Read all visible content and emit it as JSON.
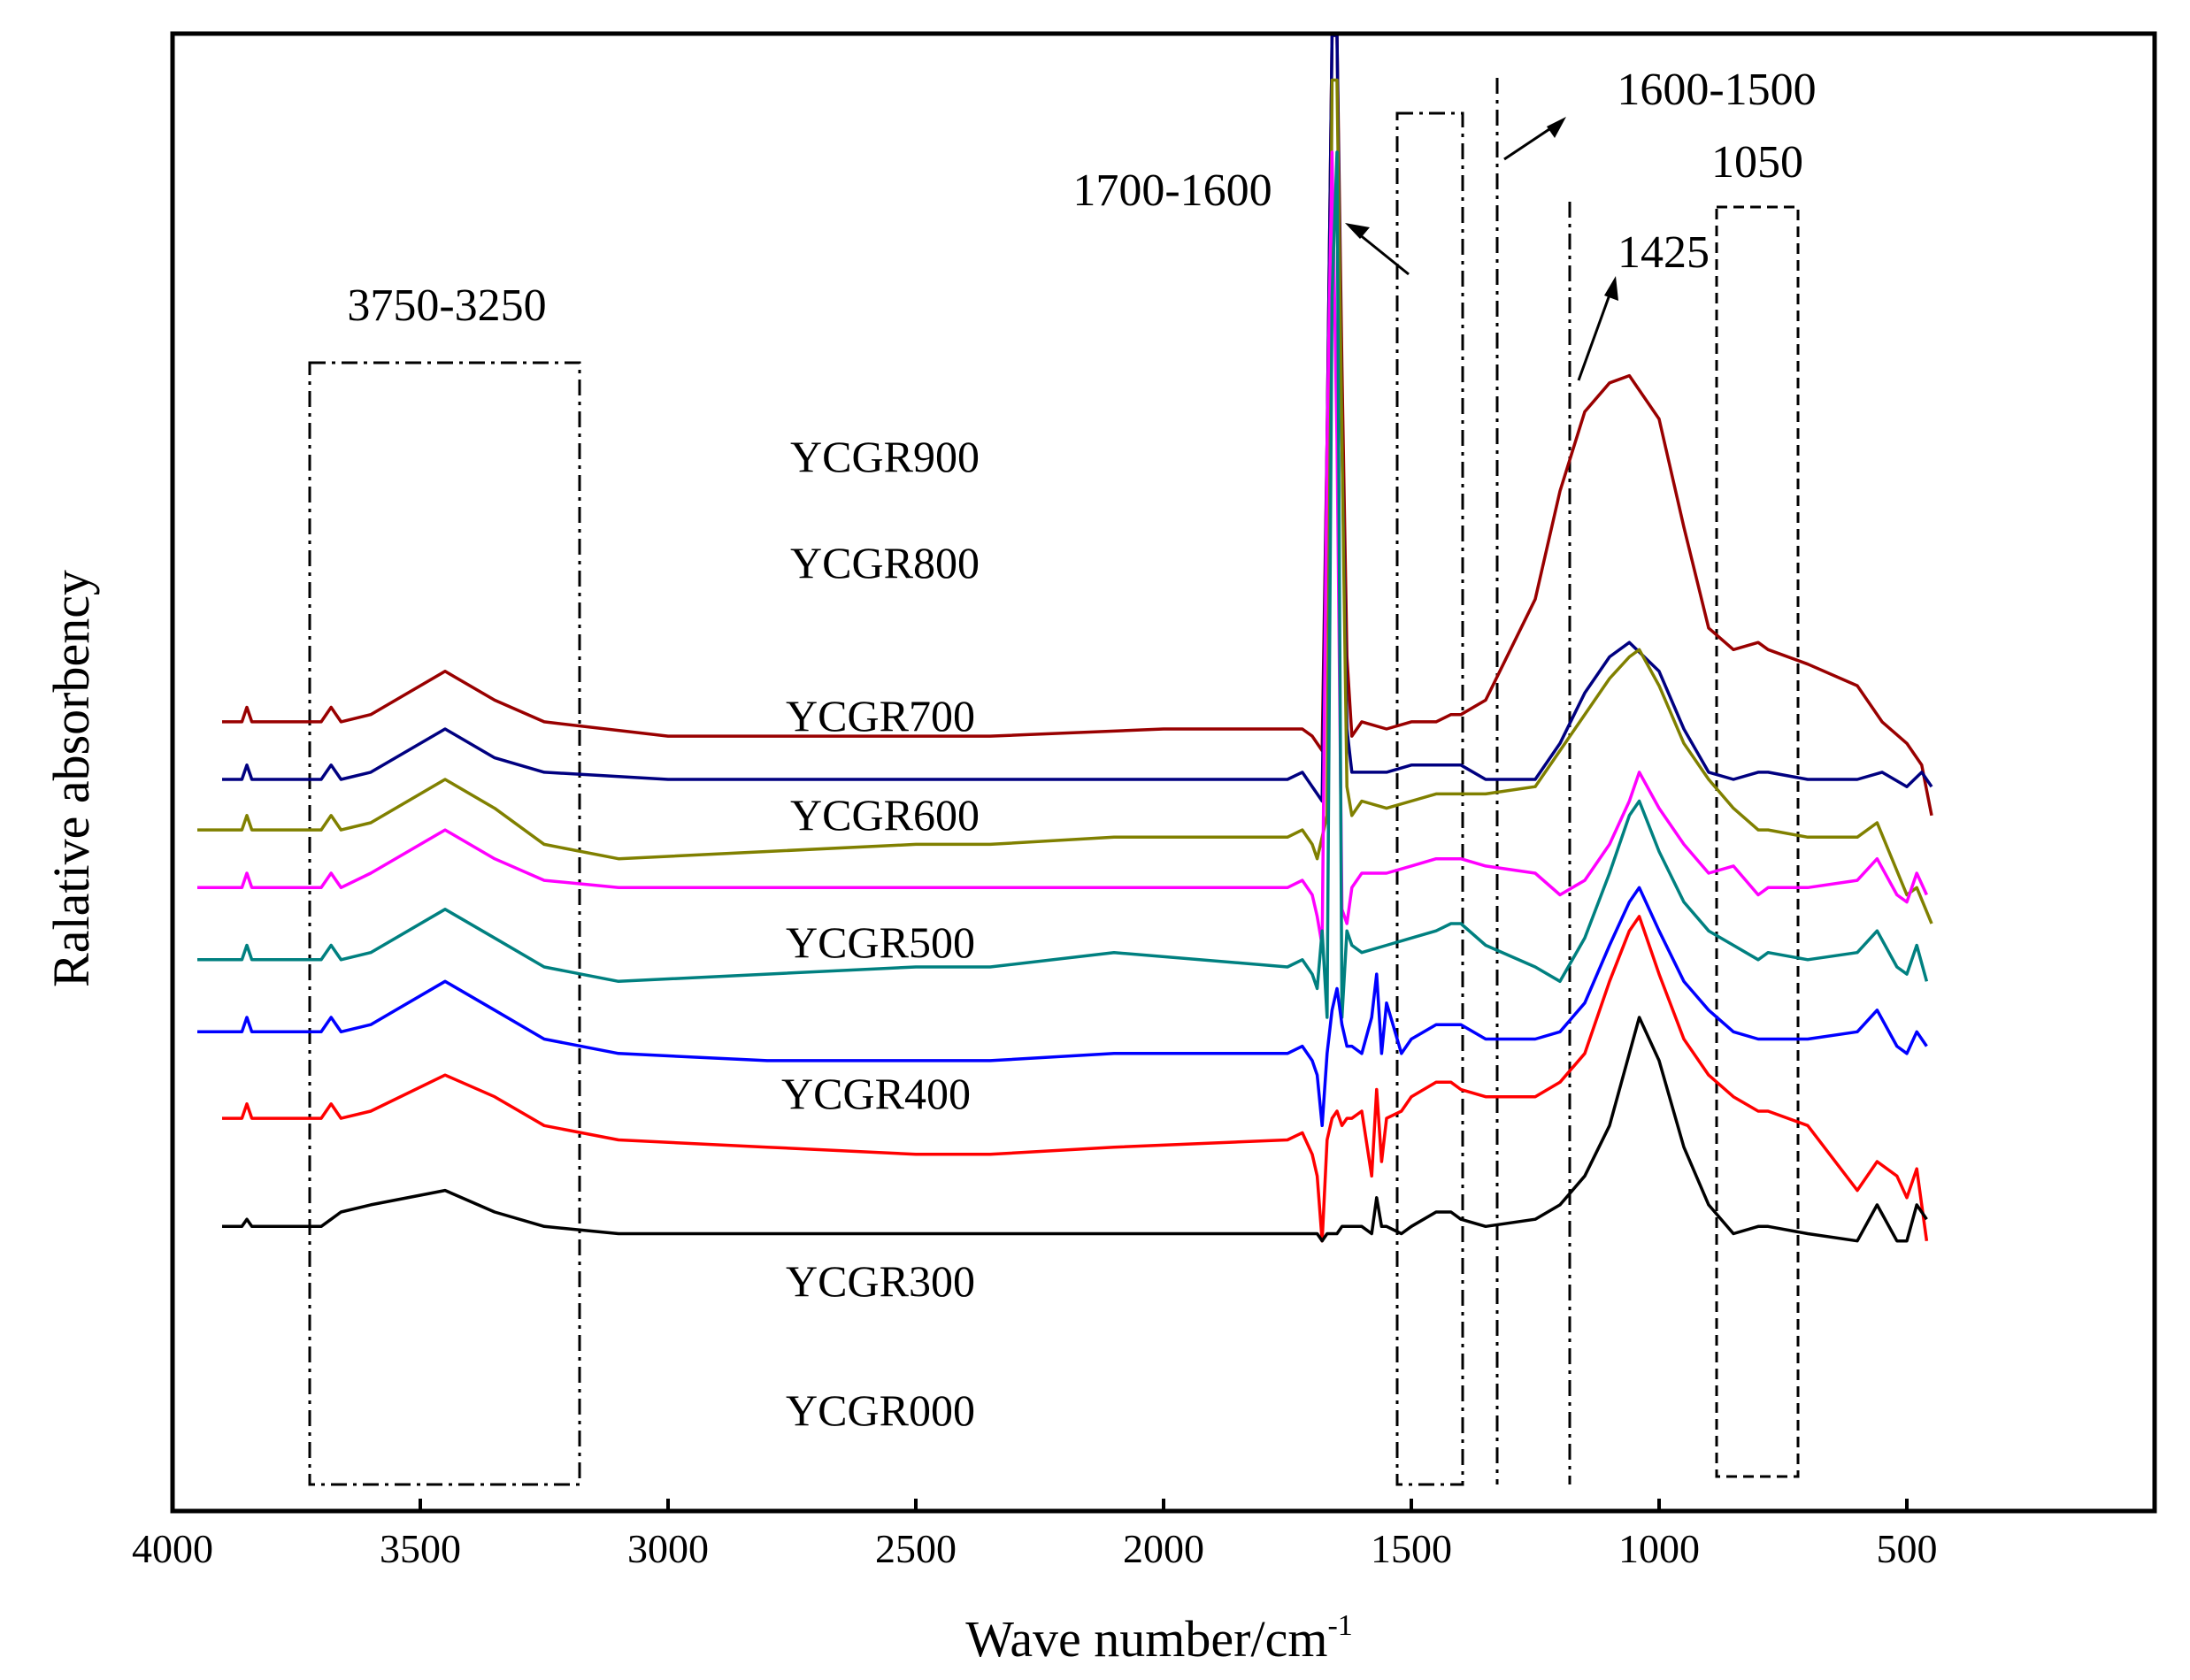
{
  "chart_data": {
    "type": "line",
    "xlabel": "Wave number/cm",
    "xlabel_sup": "-1",
    "ylabel": "Ralative absorbency",
    "xlim": [
      4000,
      300
    ],
    "x_reversed": true,
    "x_ticks": [
      4000,
      3500,
      3000,
      2500,
      2000,
      1500,
      1000,
      500
    ],
    "y_ticks_shown": false,
    "grid": false,
    "legend": "none (series names labelled inline)",
    "colors": {
      "YCGR900": "#990000",
      "YCGR800": "#000080",
      "YCGR700": "#808000",
      "YCGR600": "#ff00ff",
      "YCGR500": "#008080",
      "YCGR400": "#0000ff",
      "YCGR300": "#ff0000",
      "YCGR000": "#000000"
    },
    "series": [
      {
        "name": "YCGR900",
        "x": [
          3900,
          3860,
          3850,
          3840,
          3750,
          3700,
          3680,
          3660,
          3600,
          3450,
          3350,
          3250,
          3000,
          2800,
          2500,
          2350,
          2000,
          1750,
          1720,
          1700,
          1680,
          1670,
          1660,
          1650,
          1640,
          1630,
          1620,
          1600,
          1550,
          1500,
          1450,
          1420,
          1400,
          1350,
          1250,
          1200,
          1150,
          1100,
          1060,
          1000,
          950,
          900,
          850,
          800,
          780,
          700,
          600,
          550,
          500,
          470,
          450
        ],
        "y": [
          0.41,
          0.41,
          0.43,
          0.41,
          0.41,
          0.41,
          0.43,
          0.41,
          0.42,
          0.48,
          0.44,
          0.41,
          0.39,
          0.39,
          0.39,
          0.39,
          0.4,
          0.4,
          0.4,
          0.39,
          0.37,
          0.8,
          1.6,
          1.6,
          0.9,
          0.5,
          0.39,
          0.41,
          0.4,
          0.41,
          0.41,
          0.42,
          0.42,
          0.44,
          0.58,
          0.73,
          0.84,
          0.88,
          0.89,
          0.83,
          0.68,
          0.54,
          0.51,
          0.52,
          0.51,
          0.49,
          0.46,
          0.41,
          0.38,
          0.35,
          0.28
        ]
      },
      {
        "name": "YCGR800",
        "x": [
          3900,
          3860,
          3850,
          3840,
          3750,
          3700,
          3680,
          3660,
          3600,
          3450,
          3350,
          3250,
          3000,
          2800,
          2500,
          2350,
          2000,
          1750,
          1720,
          1700,
          1680,
          1670,
          1660,
          1650,
          1640,
          1630,
          1620,
          1600,
          1550,
          1500,
          1450,
          1420,
          1400,
          1350,
          1250,
          1200,
          1150,
          1100,
          1060,
          1000,
          950,
          900,
          850,
          800,
          780,
          700,
          600,
          550,
          500,
          470,
          450
        ],
        "y": [
          0.33,
          0.33,
          0.35,
          0.33,
          0.33,
          0.33,
          0.35,
          0.33,
          0.34,
          0.4,
          0.36,
          0.34,
          0.33,
          0.33,
          0.33,
          0.33,
          0.33,
          0.33,
          0.34,
          0.32,
          0.3,
          0.8,
          1.4,
          1.45,
          0.8,
          0.4,
          0.34,
          0.34,
          0.34,
          0.35,
          0.35,
          0.35,
          0.35,
          0.33,
          0.33,
          0.38,
          0.45,
          0.5,
          0.52,
          0.48,
          0.4,
          0.34,
          0.33,
          0.34,
          0.34,
          0.33,
          0.33,
          0.34,
          0.32,
          0.34,
          0.32
        ]
      },
      {
        "name": "YCGR700",
        "x": [
          3950,
          3860,
          3850,
          3840,
          3750,
          3700,
          3680,
          3660,
          3600,
          3450,
          3350,
          3250,
          3100,
          2800,
          2500,
          2350,
          2100,
          1750,
          1720,
          1700,
          1690,
          1680,
          1670,
          1660,
          1650,
          1640,
          1630,
          1620,
          1600,
          1550,
          1500,
          1450,
          1420,
          1400,
          1350,
          1250,
          1200,
          1150,
          1100,
          1060,
          1040,
          1000,
          950,
          900,
          850,
          800,
          780,
          700,
          600,
          560,
          500,
          480,
          450
        ],
        "y": [
          0.26,
          0.26,
          0.28,
          0.26,
          0.26,
          0.26,
          0.28,
          0.26,
          0.27,
          0.33,
          0.29,
          0.24,
          0.22,
          0.23,
          0.24,
          0.24,
          0.25,
          0.25,
          0.26,
          0.24,
          0.22,
          0.25,
          0.28,
          1.3,
          1.3,
          0.8,
          0.32,
          0.28,
          0.3,
          0.29,
          0.3,
          0.31,
          0.31,
          0.31,
          0.31,
          0.32,
          0.37,
          0.42,
          0.47,
          0.5,
          0.51,
          0.46,
          0.38,
          0.33,
          0.29,
          0.26,
          0.26,
          0.25,
          0.25,
          0.27,
          0.17,
          0.18,
          0.13
        ]
      },
      {
        "name": "YCGR600",
        "x": [
          3950,
          3860,
          3850,
          3840,
          3750,
          3700,
          3680,
          3660,
          3600,
          3450,
          3350,
          3250,
          3100,
          2800,
          2500,
          2350,
          2100,
          1750,
          1720,
          1700,
          1690,
          1680,
          1670,
          1660,
          1650,
          1640,
          1630,
          1620,
          1600,
          1550,
          1500,
          1450,
          1420,
          1400,
          1350,
          1250,
          1200,
          1150,
          1100,
          1060,
          1040,
          1000,
          950,
          900,
          850,
          800,
          780,
          700,
          600,
          560,
          520,
          500,
          480,
          460
        ],
        "y": [
          0.18,
          0.18,
          0.2,
          0.18,
          0.18,
          0.18,
          0.2,
          0.18,
          0.2,
          0.26,
          0.22,
          0.19,
          0.18,
          0.18,
          0.18,
          0.18,
          0.18,
          0.18,
          0.19,
          0.17,
          0.14,
          0.1,
          0.8,
          1.2,
          0.8,
          0.15,
          0.13,
          0.18,
          0.2,
          0.2,
          0.21,
          0.22,
          0.22,
          0.22,
          0.21,
          0.2,
          0.17,
          0.19,
          0.24,
          0.3,
          0.34,
          0.29,
          0.24,
          0.2,
          0.21,
          0.17,
          0.18,
          0.18,
          0.19,
          0.22,
          0.17,
          0.16,
          0.2,
          0.17
        ]
      },
      {
        "name": "YCGR500",
        "x": [
          3950,
          3860,
          3850,
          3840,
          3750,
          3700,
          3680,
          3660,
          3600,
          3450,
          3350,
          3250,
          3100,
          2800,
          2500,
          2350,
          2100,
          1750,
          1720,
          1700,
          1690,
          1680,
          1670,
          1660,
          1650,
          1640,
          1630,
          1620,
          1600,
          1550,
          1500,
          1450,
          1420,
          1400,
          1350,
          1250,
          1200,
          1150,
          1100,
          1060,
          1040,
          1000,
          950,
          900,
          850,
          800,
          780,
          700,
          600,
          560,
          520,
          500,
          480,
          460
        ],
        "y": [
          0.08,
          0.08,
          0.1,
          0.08,
          0.08,
          0.08,
          0.1,
          0.08,
          0.09,
          0.15,
          0.11,
          0.07,
          0.05,
          0.06,
          0.07,
          0.07,
          0.09,
          0.07,
          0.08,
          0.06,
          0.04,
          0.12,
          0.0,
          1.0,
          1.2,
          0.0,
          0.12,
          0.1,
          0.09,
          0.1,
          0.11,
          0.12,
          0.13,
          0.13,
          0.1,
          0.07,
          0.05,
          0.11,
          0.2,
          0.28,
          0.3,
          0.23,
          0.16,
          0.12,
          0.1,
          0.08,
          0.09,
          0.08,
          0.09,
          0.12,
          0.07,
          0.06,
          0.1,
          0.05
        ]
      },
      {
        "name": "YCGR400",
        "x": [
          3950,
          3860,
          3850,
          3840,
          3750,
          3700,
          3680,
          3660,
          3600,
          3450,
          3350,
          3250,
          3100,
          2800,
          2500,
          2350,
          2100,
          1750,
          1720,
          1700,
          1690,
          1680,
          1670,
          1660,
          1650,
          1640,
          1630,
          1620,
          1600,
          1580,
          1570,
          1560,
          1550,
          1520,
          1500,
          1450,
          1420,
          1400,
          1350,
          1250,
          1200,
          1150,
          1100,
          1060,
          1040,
          1000,
          950,
          900,
          850,
          800,
          780,
          700,
          600,
          560,
          520,
          500,
          480,
          460
        ],
        "y": [
          -0.02,
          -0.02,
          0.0,
          -0.02,
          -0.02,
          -0.02,
          0.0,
          -0.02,
          -0.01,
          0.05,
          0.01,
          -0.03,
          -0.05,
          -0.06,
          -0.06,
          -0.06,
          -0.05,
          -0.05,
          -0.04,
          -0.06,
          -0.08,
          -0.15,
          -0.05,
          0.01,
          0.04,
          -0.01,
          -0.04,
          -0.04,
          -0.05,
          0.0,
          0.06,
          -0.05,
          0.02,
          -0.05,
          -0.03,
          -0.01,
          -0.01,
          -0.01,
          -0.03,
          -0.03,
          -0.02,
          0.02,
          0.1,
          0.16,
          0.18,
          0.12,
          0.05,
          0.01,
          -0.02,
          -0.03,
          -0.03,
          -0.03,
          -0.02,
          0.01,
          -0.04,
          -0.05,
          -0.02,
          -0.04
        ]
      },
      {
        "name": "YCGR300",
        "x": [
          3900,
          3860,
          3850,
          3840,
          3750,
          3700,
          3680,
          3660,
          3600,
          3450,
          3350,
          3250,
          3100,
          2800,
          2500,
          2350,
          2100,
          1750,
          1720,
          1700,
          1690,
          1680,
          1670,
          1660,
          1650,
          1640,
          1630,
          1620,
          1600,
          1580,
          1570,
          1560,
          1550,
          1520,
          1500,
          1450,
          1420,
          1400,
          1350,
          1250,
          1200,
          1150,
          1100,
          1060,
          1040,
          1000,
          950,
          900,
          850,
          800,
          780,
          700,
          600,
          560,
          520,
          500,
          480,
          460
        ],
        "y": [
          -0.14,
          -0.14,
          -0.12,
          -0.14,
          -0.14,
          -0.14,
          -0.12,
          -0.14,
          -0.13,
          -0.08,
          -0.11,
          -0.15,
          -0.17,
          -0.18,
          -0.19,
          -0.19,
          -0.18,
          -0.17,
          -0.16,
          -0.19,
          -0.22,
          -0.31,
          -0.17,
          -0.14,
          -0.13,
          -0.15,
          -0.14,
          -0.14,
          -0.13,
          -0.22,
          -0.1,
          -0.2,
          -0.14,
          -0.13,
          -0.11,
          -0.09,
          -0.09,
          -0.1,
          -0.11,
          -0.11,
          -0.09,
          -0.05,
          0.05,
          0.12,
          0.14,
          0.06,
          -0.03,
          -0.08,
          -0.11,
          -0.13,
          -0.13,
          -0.15,
          -0.24,
          -0.2,
          -0.22,
          -0.25,
          -0.21,
          -0.31
        ]
      },
      {
        "name": "YCGR000",
        "x": [
          3900,
          3860,
          3850,
          3840,
          3750,
          3700,
          3680,
          3660,
          3600,
          3450,
          3350,
          3250,
          3100,
          2800,
          2500,
          2350,
          2100,
          1750,
          1720,
          1700,
          1690,
          1680,
          1670,
          1660,
          1650,
          1640,
          1630,
          1620,
          1600,
          1580,
          1570,
          1560,
          1550,
          1520,
          1500,
          1450,
          1420,
          1400,
          1350,
          1250,
          1200,
          1150,
          1100,
          1060,
          1040,
          1000,
          950,
          900,
          850,
          800,
          780,
          700,
          600,
          560,
          520,
          500,
          480,
          460
        ],
        "y": [
          -0.29,
          -0.29,
          -0.28,
          -0.29,
          -0.29,
          -0.29,
          -0.28,
          -0.27,
          -0.26,
          -0.24,
          -0.27,
          -0.29,
          -0.3,
          -0.3,
          -0.3,
          -0.3,
          -0.3,
          -0.3,
          -0.3,
          -0.3,
          -0.3,
          -0.31,
          -0.3,
          -0.3,
          -0.3,
          -0.29,
          -0.29,
          -0.29,
          -0.29,
          -0.3,
          -0.25,
          -0.29,
          -0.29,
          -0.3,
          -0.29,
          -0.27,
          -0.27,
          -0.28,
          -0.29,
          -0.28,
          -0.26,
          -0.22,
          -0.15,
          -0.05,
          0.0,
          -0.06,
          -0.18,
          -0.26,
          -0.3,
          -0.29,
          -0.29,
          -0.3,
          -0.31,
          -0.26,
          -0.31,
          -0.31,
          -0.26,
          -0.28
        ]
      }
    ],
    "series_labels": [
      {
        "text": "YCGR900",
        "x": 2650
      },
      {
        "text": "YCGR800",
        "x": 2650
      },
      {
        "text": "YCGR700",
        "x": 2650
      },
      {
        "text": "YCGR600",
        "x": 2650
      },
      {
        "text": "YCGR500",
        "x": 2650
      },
      {
        "text": "YCGR400",
        "x": 2650
      },
      {
        "text": "YCGR300",
        "x": 2650
      },
      {
        "text": "YCGR000",
        "x": 2650
      }
    ],
    "annotations": [
      {
        "label": "3750-3250",
        "x_range": [
          3750,
          3250
        ]
      },
      {
        "label": "1700-1600",
        "x_range": [
          1720,
          1610
        ]
      },
      {
        "label": "1600-1500",
        "x": 1550
      },
      {
        "label": "1425",
        "x": 1410
      },
      {
        "label": "1050",
        "x_range": [
          1130,
          980
        ]
      }
    ]
  }
}
